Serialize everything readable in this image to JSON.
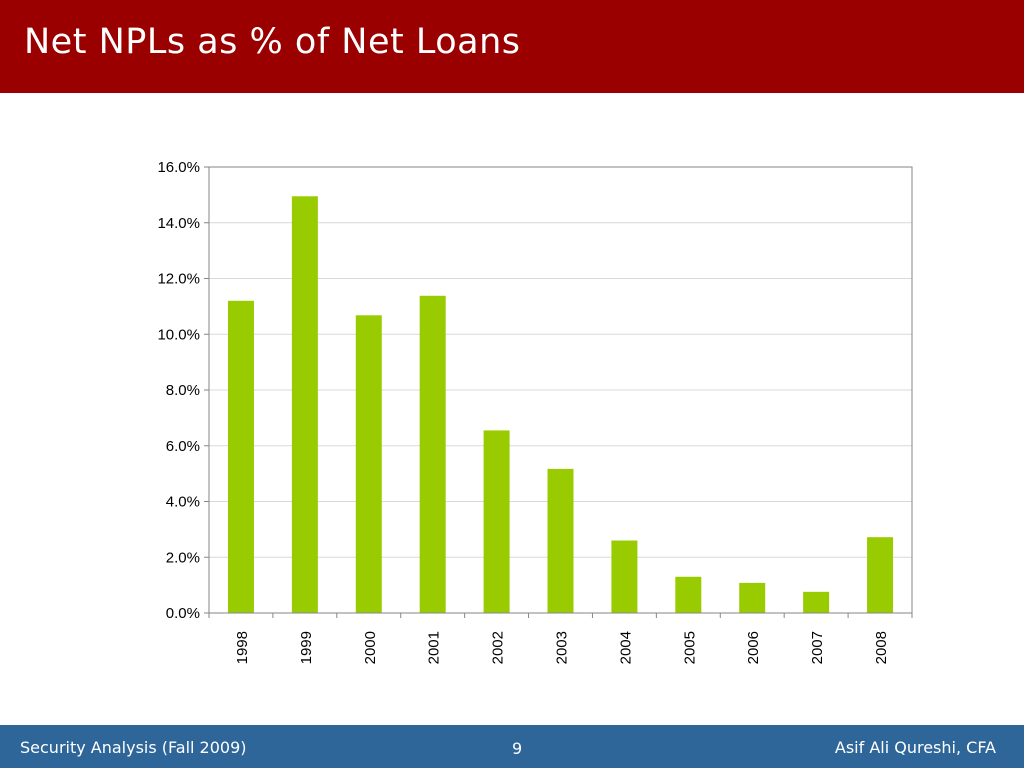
{
  "slide": {
    "title": "Net NPLs as % of Net Loans"
  },
  "chart_data": {
    "type": "bar",
    "categories": [
      "1998",
      "1999",
      "2000",
      "2001",
      "2002",
      "2003",
      "2004",
      "2005",
      "2006",
      "2007",
      "2008"
    ],
    "values": [
      11.2,
      14.95,
      10.68,
      11.38,
      6.55,
      5.17,
      2.6,
      1.3,
      1.08,
      0.76,
      2.72
    ],
    "y_unit": "%",
    "ylim": [
      0,
      16
    ],
    "y_ticks": [
      "0.0%",
      "2.0%",
      "4.0%",
      "6.0%",
      "8.0%",
      "10.0%",
      "12.0%",
      "14.0%",
      "16.0%"
    ],
    "x_tick_rotation": "vertical",
    "grid": "horizontal",
    "legend": "none",
    "bar_color": "#99cc00",
    "title": "",
    "xlabel": "",
    "ylabel": ""
  },
  "footer": {
    "left": "Security Analysis (Fall 2009)",
    "page": "9",
    "right": "Asif Ali Qureshi, CFA"
  },
  "colors": {
    "title_bar": "#9b0000",
    "footer_bar": "#2e6699",
    "gridline": "#d9d9d9",
    "axis": "#868686"
  }
}
